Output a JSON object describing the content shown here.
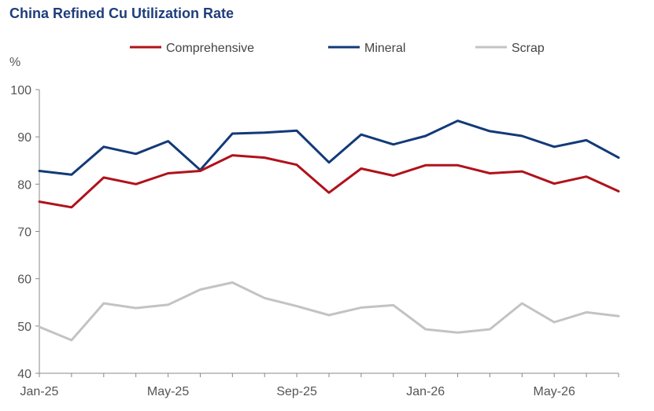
{
  "chart_data": {
    "type": "line",
    "title": "China Refined Cu Utilization Rate",
    "ylabel": "%",
    "xlabel": "",
    "ylim": [
      40,
      100
    ],
    "yticks": [
      "100",
      "90",
      "80",
      "70",
      "60",
      "50",
      "40"
    ],
    "x": [
      "Jan-25",
      "Feb-25",
      "Mar-25",
      "Apr-25",
      "May-25",
      "Jun-25",
      "Jul-25",
      "Aug-25",
      "Sep-25",
      "Oct-25",
      "Nov-25",
      "Dec-25",
      "Jan-26",
      "Feb-26",
      "Mar-26",
      "Apr-26",
      "May-26",
      "Jun-26",
      "Jul-26"
    ],
    "xtick_labels": [
      "Jan-25",
      "May-25",
      "Sep-25",
      "Jan-26",
      "May-26"
    ],
    "legend_position": "top",
    "grid": false,
    "series": [
      {
        "name": "Comprehensive",
        "color": "#b0121b",
        "values": [
          76.3,
          75.1,
          81.4,
          80.0,
          82.3,
          82.8,
          86.1,
          85.6,
          84.1,
          78.2,
          83.3,
          81.8,
          84.0,
          84.0,
          82.3,
          82.7,
          80.1,
          81.6,
          78.5
        ]
      },
      {
        "name": "Mineral",
        "color": "#123a78",
        "values": [
          82.8,
          82.0,
          87.9,
          86.4,
          89.1,
          83.0,
          90.7,
          90.9,
          91.3,
          84.6,
          90.5,
          88.4,
          90.2,
          93.4,
          91.2,
          90.2,
          87.9,
          89.3,
          85.6
        ]
      },
      {
        "name": "Scrap",
        "color": "#c3c3c3",
        "values": [
          49.8,
          47.0,
          54.8,
          53.8,
          54.5,
          57.7,
          59.2,
          55.9,
          54.2,
          52.3,
          53.9,
          54.4,
          49.3,
          48.6,
          49.3,
          54.8,
          50.8,
          52.9,
          52.1
        ]
      }
    ]
  }
}
